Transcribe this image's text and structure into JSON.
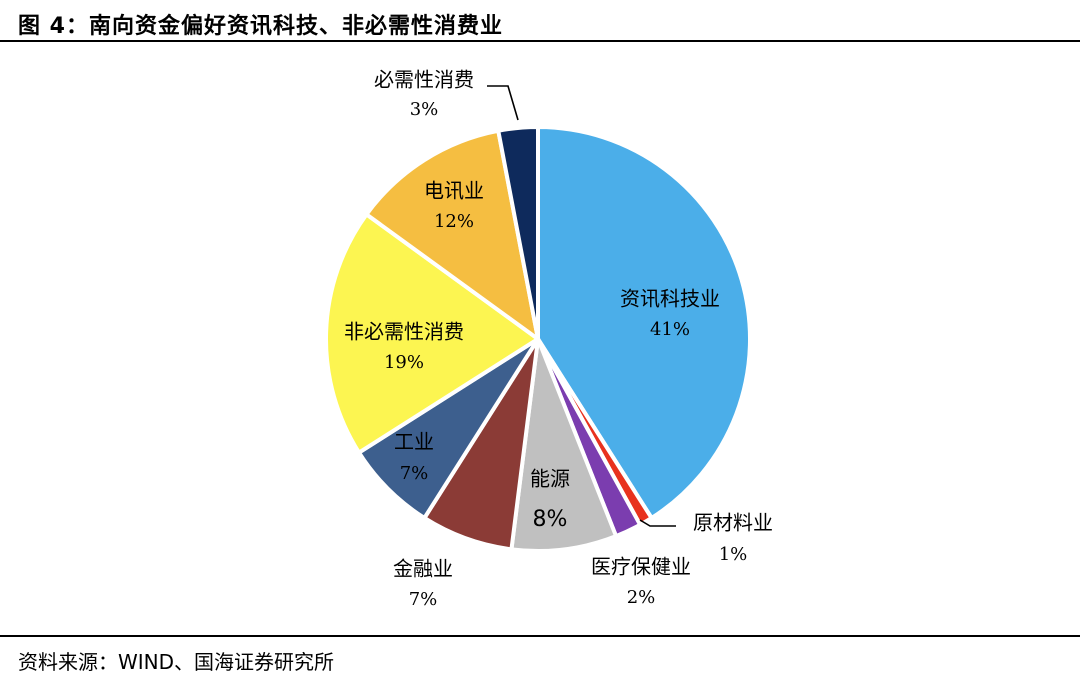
{
  "title": "图 4：南向资金偏好资讯科技、非必需性消费业",
  "source": "资料来源：WIND、国海证券研究所",
  "chart_data": {
    "type": "pie",
    "title": "",
    "slices": [
      {
        "label": "资讯科技业",
        "value": 41,
        "value_label": "41%",
        "color": "#4BAEE9"
      },
      {
        "label": "原材料业",
        "value": 1,
        "value_label": "1%",
        "color": "#E8321E"
      },
      {
        "label": "医疗保健业",
        "value": 2,
        "value_label": "2%",
        "color": "#7B3DAF"
      },
      {
        "label": "能源",
        "value": 8,
        "value_label": "8%",
        "color": "#C0C0C0"
      },
      {
        "label": "金融业",
        "value": 7,
        "value_label": "7%",
        "color": "#8B3B36"
      },
      {
        "label": "工业",
        "value": 7,
        "value_label": "7%",
        "color": "#3D5F8E"
      },
      {
        "label": "非必需性消费",
        "value": 19,
        "value_label": "19%",
        "color": "#FCF551"
      },
      {
        "label": "电讯业",
        "value": 12,
        "value_label": "12%",
        "color": "#F5BE41"
      },
      {
        "label": "必需性消费",
        "value": 3,
        "value_label": "3%",
        "color": "#0E2A5C"
      }
    ],
    "start": "12 o'clock",
    "direction": "clockwise",
    "legend": "none"
  }
}
